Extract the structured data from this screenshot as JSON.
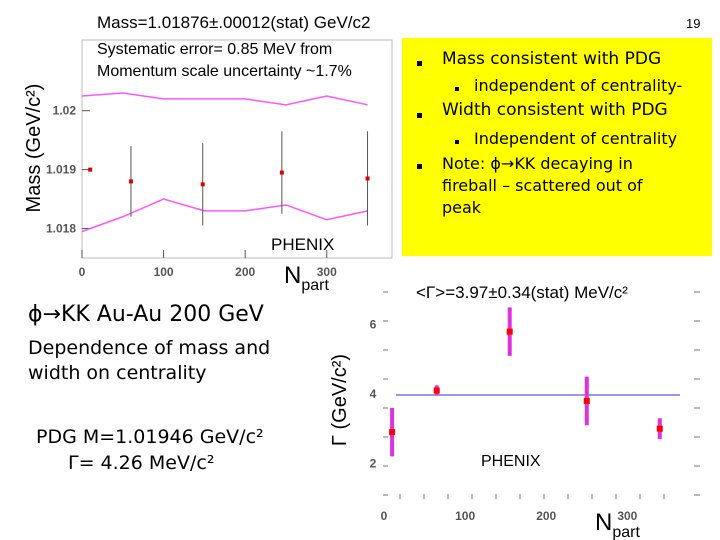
{
  "slide": {
    "number": "19",
    "title": "ϕ→KK Au-Au 200 GeV",
    "subtitle": "Dependence of mass and width on centrality",
    "pdg_mass": "PDG M=1.01946 GeV/c²",
    "pdg_width": "Γ= 4.26 MeV/c²"
  },
  "mass_panel": {
    "result": "Mass=1.01876±.00012(stat) GeV/c2",
    "systematic": "Systematic error= 0.85 MeV from",
    "systematic2": "Momentum scale uncertainty ~1.7%"
  },
  "width_panel": {
    "result": "<Γ>=3.97±0.34(stat) MeV/c²"
  },
  "bullets": {
    "b1": "Mass consistent with PDG",
    "b1_sub": "independent of centrality-",
    "b2": "Width consistent with PDG",
    "b2_sub": "Independent of centrality",
    "b3_line1": "Note: ϕ→KK decaying in",
    "b3_line2": "fireball – scattered out of",
    "b3_line3": "peak"
  },
  "chart_data": [
    {
      "type": "scatter",
      "name": "mass_vs_npart",
      "xlabel": "N",
      "xlabel_sub": "part",
      "ylabel": "Mass (GeV/c²)",
      "xlim": [
        0,
        380
      ],
      "ylim": [
        1.0175,
        1.0212
      ],
      "xticks": [
        0,
        100,
        200,
        300
      ],
      "yticks": [
        1.018,
        1.019,
        1.02
      ],
      "ytick_labels": [
        "1.018",
        "1.019",
        "1.02"
      ],
      "watermark": "PHENIX",
      "points": [
        {
          "x": 60,
          "y": 1.0188,
          "err": 0.0006
        },
        {
          "x": 148,
          "y": 1.01875,
          "err": 0.0007
        },
        {
          "x": 245,
          "y": 1.01895,
          "err": 0.0007
        },
        {
          "x": 350,
          "y": 1.01885,
          "err": 0.0008
        }
      ],
      "extra_point": {
        "x": 10,
        "y": 1.019
      },
      "band_upper": [
        [
          0,
          1.02025
        ],
        [
          50,
          1.0203
        ],
        [
          100,
          1.0202
        ],
        [
          150,
          1.0202
        ],
        [
          200,
          1.0202
        ],
        [
          250,
          1.0201
        ],
        [
          300,
          1.02025
        ],
        [
          350,
          1.0201
        ]
      ],
      "band_lower": [
        [
          0,
          1.01795
        ],
        [
          50,
          1.0182
        ],
        [
          100,
          1.0185
        ],
        [
          150,
          1.0183
        ],
        [
          200,
          1.0183
        ],
        [
          250,
          1.0184
        ],
        [
          300,
          1.01815
        ],
        [
          350,
          1.0183
        ]
      ],
      "colors": {
        "marker": "#e00000",
        "band": "#ff55ff",
        "errorbar": "#555555"
      }
    },
    {
      "type": "scatter",
      "name": "width_vs_npart",
      "xlabel": "N",
      "xlabel_sub": "part",
      "ylabel": "Γ (GeV/c²)",
      "xlim": [
        0,
        360
      ],
      "ylim": [
        1,
        7
      ],
      "xticks": [
        0,
        100,
        200,
        300
      ],
      "yticks": [
        2,
        4,
        6
      ],
      "watermark": "PHENIX",
      "mean_line": 3.97,
      "points": [
        {
          "x": 10,
          "y": 2.9,
          "err": 0.7
        },
        {
          "x": 65,
          "y": 4.1,
          "err": 0.15
        },
        {
          "x": 155,
          "y": 5.8,
          "err": 0.7
        },
        {
          "x": 250,
          "y": 3.8,
          "err": 0.7
        },
        {
          "x": 340,
          "y": 3.0,
          "err": 0.3
        }
      ],
      "colors": {
        "marker": "#ff0000",
        "errorbar": "#dd33dd",
        "line": "#3333cc"
      }
    }
  ]
}
